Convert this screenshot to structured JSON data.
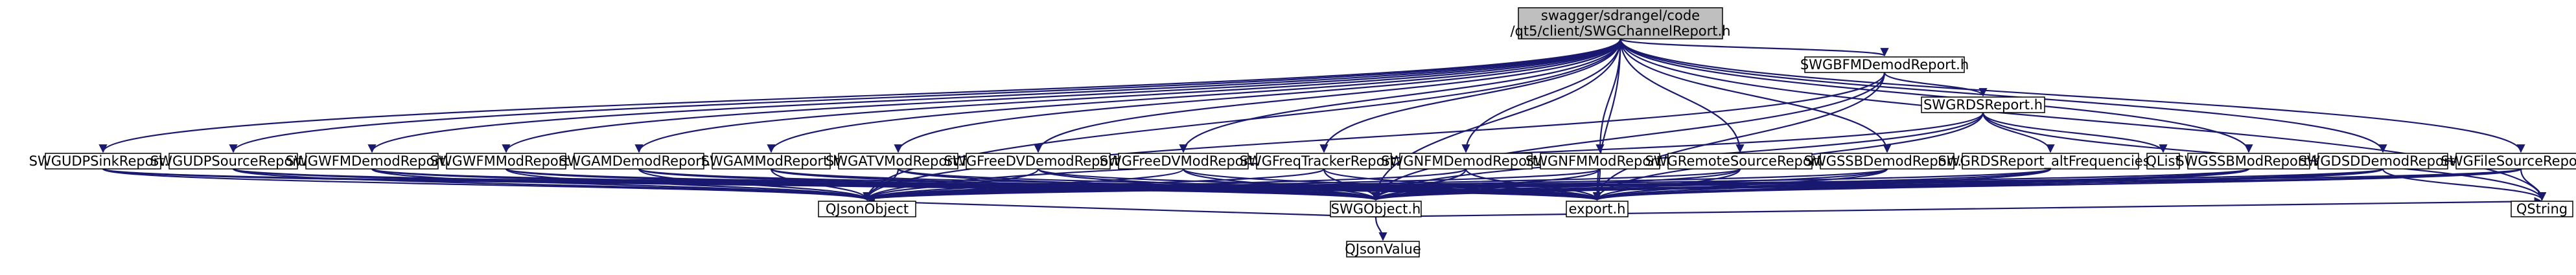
{
  "graph": {
    "root": {
      "id": "root",
      "lines": [
        "swagger/sdrangel/code",
        "/qt5/client/SWGChannelReport.h"
      ]
    },
    "nodes": [
      {
        "id": "bfm",
        "label": "SWGBFMDemodReport.h"
      },
      {
        "id": "rds",
        "label": "SWGRDSReport.h"
      },
      {
        "id": "udpsink",
        "label": "SWGUDPSinkReport.h"
      },
      {
        "id": "udpsrc",
        "label": "SWGUDPSourceReport.h"
      },
      {
        "id": "wfmdemod",
        "label": "SWGWFMDemodReport.h"
      },
      {
        "id": "wfmmod",
        "label": "SWGWFMModReport.h"
      },
      {
        "id": "amdemod",
        "label": "SWGAMDemodReport.h"
      },
      {
        "id": "ammod",
        "label": "SWGAMModReport.h"
      },
      {
        "id": "atvmod",
        "label": "SWGATVModReport.h"
      },
      {
        "id": "freedvdemod",
        "label": "SWGFreeDVDemodReport.h"
      },
      {
        "id": "freedvmod",
        "label": "SWGFreeDVModReport.h"
      },
      {
        "id": "freqtracker",
        "label": "SWGFreqTrackerReport.h"
      },
      {
        "id": "nfmdemod",
        "label": "SWGNFMDemodReport.h"
      },
      {
        "id": "nfmmod",
        "label": "SWGNFMModReport.h"
      },
      {
        "id": "remotesrc",
        "label": "SWGRemoteSourceReport.h"
      },
      {
        "id": "ssbdemod",
        "label": "SWGSSBDemodReport.h"
      },
      {
        "id": "rdsaf",
        "label": "SWGRDSReport_altFrequencies.h"
      },
      {
        "id": "qlist",
        "label": "QList"
      },
      {
        "id": "ssbmod",
        "label": "SWGSSBModReport.h"
      },
      {
        "id": "dsd",
        "label": "SWGDSDDemodReport.h"
      },
      {
        "id": "filesrc",
        "label": "SWGFileSourceReport.h"
      },
      {
        "id": "qjsonobject",
        "label": "QJsonObject"
      },
      {
        "id": "swgobject",
        "label": "SWGObject.h"
      },
      {
        "id": "export",
        "label": "export.h"
      },
      {
        "id": "qstring",
        "label": "QString"
      },
      {
        "id": "qjsonvalue",
        "label": "QJsonValue"
      }
    ],
    "edges": [
      [
        "root",
        "bfm"
      ],
      [
        "root",
        "udpsink"
      ],
      [
        "root",
        "udpsrc"
      ],
      [
        "root",
        "wfmdemod"
      ],
      [
        "root",
        "wfmmod"
      ],
      [
        "root",
        "amdemod"
      ],
      [
        "root",
        "ammod"
      ],
      [
        "root",
        "atvmod"
      ],
      [
        "root",
        "freedvdemod"
      ],
      [
        "root",
        "freedvmod"
      ],
      [
        "root",
        "freqtracker"
      ],
      [
        "root",
        "nfmdemod"
      ],
      [
        "root",
        "nfmmod"
      ],
      [
        "root",
        "remotesrc"
      ],
      [
        "root",
        "ssbdemod"
      ],
      [
        "root",
        "ssbmod"
      ],
      [
        "root",
        "dsd"
      ],
      [
        "root",
        "filesrc"
      ],
      [
        "root",
        "qjsonobject"
      ],
      [
        "root",
        "swgobject"
      ],
      [
        "root",
        "export"
      ],
      [
        "root",
        "qstring"
      ],
      [
        "bfm",
        "rds"
      ],
      [
        "bfm",
        "qjsonobject"
      ],
      [
        "bfm",
        "swgobject"
      ],
      [
        "bfm",
        "export"
      ],
      [
        "rds",
        "rdsaf"
      ],
      [
        "rds",
        "qlist"
      ],
      [
        "rds",
        "qjsonobject"
      ],
      [
        "rds",
        "swgobject"
      ],
      [
        "rds",
        "export"
      ],
      [
        "rds",
        "qstring"
      ],
      [
        "rdsaf",
        "qjsonobject"
      ],
      [
        "rdsaf",
        "swgobject"
      ],
      [
        "rdsaf",
        "export"
      ],
      [
        "udpsink",
        "qjsonobject"
      ],
      [
        "udpsink",
        "swgobject"
      ],
      [
        "udpsink",
        "export"
      ],
      [
        "udpsrc",
        "qjsonobject"
      ],
      [
        "udpsrc",
        "swgobject"
      ],
      [
        "udpsrc",
        "export"
      ],
      [
        "wfmdemod",
        "qjsonobject"
      ],
      [
        "wfmdemod",
        "swgobject"
      ],
      [
        "wfmdemod",
        "export"
      ],
      [
        "wfmmod",
        "qjsonobject"
      ],
      [
        "wfmmod",
        "swgobject"
      ],
      [
        "wfmmod",
        "export"
      ],
      [
        "amdemod",
        "qjsonobject"
      ],
      [
        "amdemod",
        "swgobject"
      ],
      [
        "amdemod",
        "export"
      ],
      [
        "ammod",
        "qjsonobject"
      ],
      [
        "ammod",
        "swgobject"
      ],
      [
        "ammod",
        "export"
      ],
      [
        "atvmod",
        "qjsonobject"
      ],
      [
        "atvmod",
        "swgobject"
      ],
      [
        "atvmod",
        "export"
      ],
      [
        "freedvdemod",
        "qjsonobject"
      ],
      [
        "freedvdemod",
        "swgobject"
      ],
      [
        "freedvdemod",
        "export"
      ],
      [
        "freedvmod",
        "qjsonobject"
      ],
      [
        "freedvmod",
        "swgobject"
      ],
      [
        "freedvmod",
        "export"
      ],
      [
        "freqtracker",
        "qjsonobject"
      ],
      [
        "freqtracker",
        "swgobject"
      ],
      [
        "freqtracker",
        "export"
      ],
      [
        "nfmdemod",
        "qjsonobject"
      ],
      [
        "nfmdemod",
        "swgobject"
      ],
      [
        "nfmdemod",
        "export"
      ],
      [
        "nfmmod",
        "qjsonobject"
      ],
      [
        "nfmmod",
        "swgobject"
      ],
      [
        "nfmmod",
        "export"
      ],
      [
        "remotesrc",
        "qjsonobject"
      ],
      [
        "remotesrc",
        "swgobject"
      ],
      [
        "remotesrc",
        "export"
      ],
      [
        "ssbdemod",
        "qjsonobject"
      ],
      [
        "ssbdemod",
        "swgobject"
      ],
      [
        "ssbdemod",
        "export"
      ],
      [
        "ssbmod",
        "qjsonobject"
      ],
      [
        "ssbmod",
        "swgobject"
      ],
      [
        "ssbmod",
        "export"
      ],
      [
        "dsd",
        "qjsonobject"
      ],
      [
        "dsd",
        "swgobject"
      ],
      [
        "dsd",
        "export"
      ],
      [
        "dsd",
        "qstring"
      ],
      [
        "filesrc",
        "qjsonobject"
      ],
      [
        "filesrc",
        "swgobject"
      ],
      [
        "filesrc",
        "export"
      ],
      [
        "filesrc",
        "qstring"
      ],
      [
        "swgobject",
        "qjsonobject"
      ],
      [
        "swgobject",
        "qjsonvalue"
      ],
      [
        "swgobject",
        "qstring"
      ]
    ],
    "colors": {
      "root_fill": "#bfbfbf",
      "node_fill": "#ffffff",
      "external_stroke": "#bfbfbf",
      "edge": "#191970",
      "text": "#000000"
    }
  }
}
